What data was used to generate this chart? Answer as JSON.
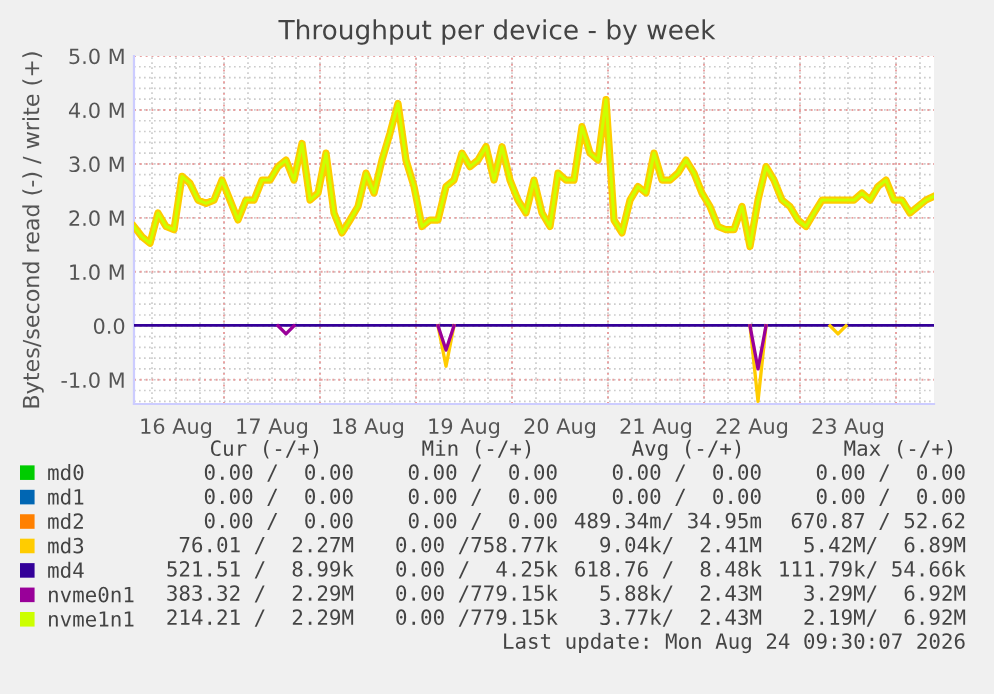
{
  "chart_data": {
    "type": "line",
    "title": "Throughput per device - by week",
    "ylabel": "Bytes/second read (-) / write (+)",
    "xlim": [
      "2026-08-16T01:30",
      "2026-08-24T09:30"
    ],
    "xticks": [
      {
        "value": "2026-08-16T12:00",
        "label": "16 Aug"
      },
      {
        "value": "2026-08-17T00:00",
        "label": null
      },
      {
        "value": "2026-08-17T12:00",
        "label": "17 Aug"
      },
      {
        "value": "2026-08-18T00:00",
        "label": null
      },
      {
        "value": "2026-08-18T12:00",
        "label": "18 Aug"
      },
      {
        "value": "2026-08-19T00:00",
        "label": null
      },
      {
        "value": "2026-08-19T12:00",
        "label": "19 Aug"
      },
      {
        "value": "2026-08-20T00:00",
        "label": null
      },
      {
        "value": "2026-08-20T12:00",
        "label": "20 Aug"
      },
      {
        "value": "2026-08-21T00:00",
        "label": null
      },
      {
        "value": "2026-08-21T12:00",
        "label": "21 Aug"
      },
      {
        "value": "2026-08-22T00:00",
        "label": null
      },
      {
        "value": "2026-08-22T12:00",
        "label": "22 Aug"
      },
      {
        "value": "2026-08-23T00:00",
        "label": null
      },
      {
        "value": "2026-08-23T12:00",
        "label": "23 Aug"
      },
      {
        "value": "2026-08-24T00:00",
        "label": null
      }
    ],
    "ylim": [
      -1450000,
      5000000
    ],
    "yticks": [
      {
        "value": -1000000,
        "label": "-1.0 M"
      },
      {
        "value": 0,
        "label": "0.0"
      },
      {
        "value": 1000000,
        "label": "1.0 M"
      },
      {
        "value": 2000000,
        "label": "2.0 M"
      },
      {
        "value": 3000000,
        "label": "3.0 M"
      },
      {
        "value": 4000000,
        "label": "4.0 M"
      },
      {
        "value": 5000000,
        "label": "5.0 M"
      }
    ],
    "grid": true,
    "legend": "bottom",
    "marker": "none",
    "line_style": "solid",
    "series": [
      {
        "name": "md0",
        "color": "#00cc00"
      },
      {
        "name": "md1",
        "color": "#0066b3"
      },
      {
        "name": "md2",
        "color": "#ff8000"
      },
      {
        "name": "md3",
        "color": "#ffcc00",
        "x": [
          "2026-08-16T01:30",
          "2026-08-16T03:30",
          "2026-08-16T05:30",
          "2026-08-16T07:30",
          "2026-08-16T09:30",
          "2026-08-16T11:30",
          "2026-08-16T13:30",
          "2026-08-16T15:30",
          "2026-08-16T17:30",
          "2026-08-16T19:30",
          "2026-08-16T21:30",
          "2026-08-16T23:30",
          "2026-08-17T01:30",
          "2026-08-17T03:30",
          "2026-08-17T05:30",
          "2026-08-17T07:30",
          "2026-08-17T09:30",
          "2026-08-17T11:30",
          "2026-08-17T13:30",
          "2026-08-17T15:30",
          "2026-08-17T17:30",
          "2026-08-17T19:30",
          "2026-08-17T21:30",
          "2026-08-17T23:30",
          "2026-08-18T01:30",
          "2026-08-18T03:30",
          "2026-08-18T05:30",
          "2026-08-18T07:30",
          "2026-08-18T09:30",
          "2026-08-18T11:30",
          "2026-08-18T13:30",
          "2026-08-18T15:30",
          "2026-08-18T17:30",
          "2026-08-18T19:30",
          "2026-08-18T21:30",
          "2026-08-18T23:30",
          "2026-08-19T01:30",
          "2026-08-19T03:30",
          "2026-08-19T05:30",
          "2026-08-19T07:30",
          "2026-08-19T09:30",
          "2026-08-19T11:30",
          "2026-08-19T13:30",
          "2026-08-19T15:30",
          "2026-08-19T17:30",
          "2026-08-19T19:30",
          "2026-08-19T21:30",
          "2026-08-19T23:30",
          "2026-08-20T01:30",
          "2026-08-20T03:30",
          "2026-08-20T05:30",
          "2026-08-20T07:30",
          "2026-08-20T09:30",
          "2026-08-20T11:30",
          "2026-08-20T13:30",
          "2026-08-20T15:30",
          "2026-08-20T17:30",
          "2026-08-20T19:30",
          "2026-08-20T21:30",
          "2026-08-20T23:30",
          "2026-08-21T01:30",
          "2026-08-21T03:30",
          "2026-08-21T05:30",
          "2026-08-21T07:30",
          "2026-08-21T09:30",
          "2026-08-21T11:30",
          "2026-08-21T13:30",
          "2026-08-21T15:30",
          "2026-08-21T17:30",
          "2026-08-21T19:30",
          "2026-08-21T21:30",
          "2026-08-21T23:30",
          "2026-08-22T01:30",
          "2026-08-22T03:30",
          "2026-08-22T05:30",
          "2026-08-22T07:30",
          "2026-08-22T09:30",
          "2026-08-22T11:30",
          "2026-08-22T13:30",
          "2026-08-22T15:30",
          "2026-08-22T17:30",
          "2026-08-22T19:30",
          "2026-08-22T21:30",
          "2026-08-22T23:30",
          "2026-08-23T01:30",
          "2026-08-23T03:30",
          "2026-08-23T05:30",
          "2026-08-23T07:30",
          "2026-08-23T09:30",
          "2026-08-23T11:30",
          "2026-08-23T13:30",
          "2026-08-23T15:30",
          "2026-08-23T17:30",
          "2026-08-23T19:30",
          "2026-08-23T21:30",
          "2026-08-23T23:30",
          "2026-08-24T01:30",
          "2026-08-24T03:30",
          "2026-08-24T05:30",
          "2026-08-24T07:30",
          "2026-08-24T09:30"
        ],
        "values": [
          1840000,
          1650000,
          1530000,
          2090000,
          1840000,
          1780000,
          2770000,
          2640000,
          2330000,
          2270000,
          2330000,
          2700000,
          2330000,
          1960000,
          2330000,
          2330000,
          2700000,
          2700000,
          2950000,
          3070000,
          2700000,
          3380000,
          2330000,
          2460000,
          3200000,
          2090000,
          1720000,
          1960000,
          2210000,
          2830000,
          2460000,
          3070000,
          3570000,
          4120000,
          3070000,
          2580000,
          1840000,
          1960000,
          1960000,
          2580000,
          2700000,
          3200000,
          2950000,
          3070000,
          3320000,
          2700000,
          3320000,
          2700000,
          2330000,
          2090000,
          2700000,
          2090000,
          1840000,
          2830000,
          2700000,
          2700000,
          3690000,
          3200000,
          3070000,
          4190000,
          1960000,
          1720000,
          2330000,
          2580000,
          2460000,
          3200000,
          2700000,
          2700000,
          2830000,
          3070000,
          2830000,
          2460000,
          2210000,
          1840000,
          1780000,
          1780000,
          2210000,
          1470000,
          2330000,
          2950000,
          2700000,
          2330000,
          2210000,
          1960000,
          1840000,
          2090000,
          2330000,
          2330000,
          2330000,
          2330000,
          2330000,
          2460000,
          2330000,
          2580000,
          2700000,
          2330000,
          2330000,
          2090000,
          2210000,
          2330000,
          2400000
        ]
      },
      {
        "name": "md4",
        "color": "#330099",
        "x": [
          "2026-08-16T01:30",
          "2026-08-24T09:30"
        ],
        "values": [
          9000,
          9000
        ]
      },
      {
        "name": "nvme0n1",
        "color": "#990099"
      },
      {
        "name": "nvme1n1",
        "color": "#ccff00",
        "x": [
          "2026-08-16T01:30",
          "2026-08-16T03:30",
          "2026-08-16T05:30",
          "2026-08-16T07:30",
          "2026-08-16T09:30",
          "2026-08-16T11:30",
          "2026-08-16T13:30",
          "2026-08-16T15:30",
          "2026-08-16T17:30",
          "2026-08-16T19:30",
          "2026-08-16T21:30",
          "2026-08-16T23:30",
          "2026-08-17T01:30",
          "2026-08-17T03:30",
          "2026-08-17T05:30",
          "2026-08-17T07:30",
          "2026-08-17T09:30",
          "2026-08-17T11:30",
          "2026-08-17T13:30",
          "2026-08-17T15:30",
          "2026-08-17T17:30",
          "2026-08-17T19:30",
          "2026-08-17T21:30",
          "2026-08-17T23:30",
          "2026-08-18T01:30",
          "2026-08-18T03:30",
          "2026-08-18T05:30",
          "2026-08-18T07:30",
          "2026-08-18T09:30",
          "2026-08-18T11:30",
          "2026-08-18T13:30",
          "2026-08-18T15:30",
          "2026-08-18T17:30",
          "2026-08-18T19:30",
          "2026-08-18T21:30",
          "2026-08-18T23:30",
          "2026-08-19T01:30",
          "2026-08-19T03:30",
          "2026-08-19T05:30",
          "2026-08-19T07:30",
          "2026-08-19T09:30",
          "2026-08-19T11:30",
          "2026-08-19T13:30",
          "2026-08-19T15:30",
          "2026-08-19T17:30",
          "2026-08-19T19:30",
          "2026-08-19T21:30",
          "2026-08-19T23:30",
          "2026-08-20T01:30",
          "2026-08-20T03:30",
          "2026-08-20T05:30",
          "2026-08-20T07:30",
          "2026-08-20T09:30",
          "2026-08-20T11:30",
          "2026-08-20T13:30",
          "2026-08-20T15:30",
          "2026-08-20T17:30",
          "2026-08-20T19:30",
          "2026-08-20T21:30",
          "2026-08-20T23:30",
          "2026-08-21T01:30",
          "2026-08-21T03:30",
          "2026-08-21T05:30",
          "2026-08-21T07:30",
          "2026-08-21T09:30",
          "2026-08-21T11:30",
          "2026-08-21T13:30",
          "2026-08-21T15:30",
          "2026-08-21T17:30",
          "2026-08-21T19:30",
          "2026-08-21T21:30",
          "2026-08-21T23:30",
          "2026-08-22T01:30",
          "2026-08-22T03:30",
          "2026-08-22T05:30",
          "2026-08-22T07:30",
          "2026-08-22T09:30",
          "2026-08-22T11:30",
          "2026-08-22T13:30",
          "2026-08-22T15:30",
          "2026-08-22T17:30",
          "2026-08-22T19:30",
          "2026-08-22T21:30",
          "2026-08-22T23:30",
          "2026-08-23T01:30",
          "2026-08-23T03:30",
          "2026-08-23T05:30",
          "2026-08-23T07:30",
          "2026-08-23T09:30",
          "2026-08-23T11:30",
          "2026-08-23T13:30",
          "2026-08-23T15:30",
          "2026-08-23T17:30",
          "2026-08-23T19:30",
          "2026-08-23T21:30",
          "2026-08-23T23:30",
          "2026-08-24T01:30",
          "2026-08-24T03:30",
          "2026-08-24T05:30",
          "2026-08-24T07:30",
          "2026-08-24T09:30"
        ],
        "values": [
          1840000,
          1650000,
          1530000,
          2090000,
          1840000,
          1780000,
          2770000,
          2640000,
          2330000,
          2270000,
          2330000,
          2700000,
          2330000,
          1960000,
          2330000,
          2330000,
          2700000,
          2700000,
          2950000,
          3070000,
          2700000,
          3380000,
          2330000,
          2460000,
          3200000,
          2090000,
          1720000,
          1960000,
          2210000,
          2830000,
          2460000,
          3070000,
          3570000,
          4120000,
          3070000,
          2580000,
          1840000,
          1960000,
          1960000,
          2580000,
          2700000,
          3200000,
          2950000,
          3070000,
          3320000,
          2700000,
          3320000,
          2700000,
          2330000,
          2090000,
          2700000,
          2090000,
          1840000,
          2830000,
          2700000,
          2700000,
          3690000,
          3200000,
          3070000,
          4190000,
          1960000,
          1720000,
          2330000,
          2580000,
          2460000,
          3200000,
          2700000,
          2700000,
          2830000,
          3070000,
          2830000,
          2460000,
          2210000,
          1840000,
          1780000,
          1780000,
          2210000,
          1470000,
          2330000,
          2950000,
          2700000,
          2330000,
          2210000,
          1960000,
          1840000,
          2090000,
          2330000,
          2330000,
          2330000,
          2330000,
          2330000,
          2460000,
          2330000,
          2580000,
          2700000,
          2330000,
          2330000,
          2090000,
          2210000,
          2330000,
          2400000
        ]
      },
      {
        "color": "#ffcc00",
        "x": [
          "2026-08-19T05:30",
          "2026-08-19T07:30",
          "2026-08-19T09:30",
          "2026-08-19T10:30",
          "2026-08-22T11:30",
          "2026-08-22T13:30",
          "2026-08-22T15:30",
          "2026-08-22T16:30",
          "2026-08-23T07:30",
          "2026-08-23T09:30",
          "2026-08-23T11:30"
        ],
        "values": [
          0,
          -750000,
          0,
          null,
          0,
          -1400000,
          0,
          null,
          0,
          -150000,
          0
        ]
      },
      {
        "color": "#990099",
        "x": [
          "2026-08-17T13:30",
          "2026-08-17T15:30",
          "2026-08-17T17:30",
          "2026-08-17T18:30",
          "2026-08-19T05:30",
          "2026-08-19T07:30",
          "2026-08-19T09:30",
          "2026-08-19T10:30",
          "2026-08-22T11:30",
          "2026-08-22T13:30",
          "2026-08-22T15:30"
        ],
        "values": [
          0,
          -150000,
          0,
          null,
          0,
          -450000,
          0,
          null,
          0,
          -800000,
          0
        ]
      }
    ],
    "annotations": [
      "Cur (-/+)",
      "Min (-/+)",
      "Avg (-/+)",
      "Max (-/+)",
      "0.00 /  0.00",
      "0.00 /  0.00",
      "0.00 /  0.00",
      "0.00 /  0.00",
      "0.00 /  0.00",
      "0.00 /  0.00",
      "0.00 /  0.00",
      "0.00 /  0.00",
      "0.00 /  0.00",
      "0.00 /  0.00",
      "489.34m/ 34.95m",
      "670.87 / 52.62",
      "76.01 /  2.27M",
      "0.00 /758.77k",
      "9.04k/  2.41M",
      "5.42M/  6.89M",
      "521.51 /  8.99k",
      "0.00 /  4.25k",
      "618.76 /  8.48k",
      "111.79k/ 54.66k",
      "383.32 /  2.29M",
      "0.00 /779.15k",
      "5.88k/  2.43M",
      "3.29M/  6.92M",
      "214.21 /  2.29M",
      "0.00 /779.15k",
      "3.77k/  2.43M",
      "2.19M/  6.92M",
      "Last update: Mon Aug 24 09:30:07 2026"
    ]
  }
}
